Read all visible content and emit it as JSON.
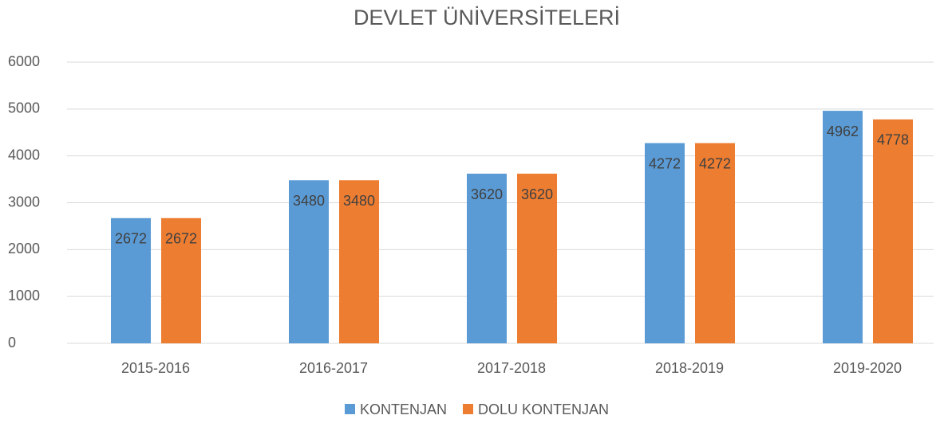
{
  "chart_data": {
    "type": "bar",
    "title": "DEVLET ÜNİVERSİTELERİ",
    "categories": [
      "2015-2016",
      "2016-2017",
      "2017-2018",
      "2018-2019",
      "2019-2020"
    ],
    "series": [
      {
        "name": "KONTENJAN",
        "color": "#5b9bd5",
        "values": [
          2672,
          3480,
          3620,
          4272,
          4962
        ]
      },
      {
        "name": "DOLU KONTENJAN",
        "color": "#ed7d31",
        "values": [
          2672,
          3480,
          3620,
          4272,
          4778
        ]
      }
    ],
    "ylim": [
      0,
      6000
    ],
    "yticks": [
      0,
      1000,
      2000,
      3000,
      4000,
      5000,
      6000
    ],
    "grid": true,
    "legend": "bottom"
  }
}
